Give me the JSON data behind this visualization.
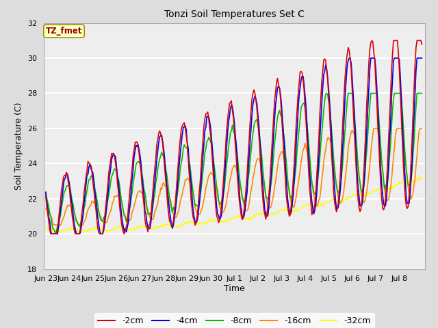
{
  "title": "Tonzi Soil Temperatures Set C",
  "xlabel": "Time",
  "ylabel": "Soil Temperature (C)",
  "ylim": [
    18,
    32
  ],
  "yticks": [
    18,
    20,
    22,
    24,
    26,
    28,
    30,
    32
  ],
  "annotation_text": "TZ_fmet",
  "annotation_box_color": "#ffffcc",
  "annotation_text_color": "#990000",
  "annotation_border_color": "#999900",
  "colors": {
    "-2cm": "#dd0000",
    "-4cm": "#0000ee",
    "-8cm": "#00bb00",
    "-16cm": "#ff8800",
    "-32cm": "#ffff00"
  },
  "legend_labels": [
    "-2cm",
    "-4cm",
    "-8cm",
    "-16cm",
    "-32cm"
  ],
  "bg_color": "#dddddd",
  "plot_bg_color": "#eeeeee",
  "grid_color": "#ffffff",
  "num_points": 384,
  "period": 24,
  "tick_positions": [
    0,
    24,
    48,
    72,
    96,
    120,
    144,
    168,
    192,
    216,
    240,
    264,
    288,
    312,
    336,
    360,
    384
  ],
  "tick_labels": [
    "Jun 23",
    "Jun 24",
    "Jun 25",
    "Jun 26",
    "Jun 27",
    "Jun 28",
    "Jun 29",
    "Jun 30",
    "Jul 1",
    "Jul 2",
    "Jul 3",
    "Jul 4",
    "Jul 5",
    "Jul 6",
    "Jul 7",
    "Jul 8",
    ""
  ]
}
